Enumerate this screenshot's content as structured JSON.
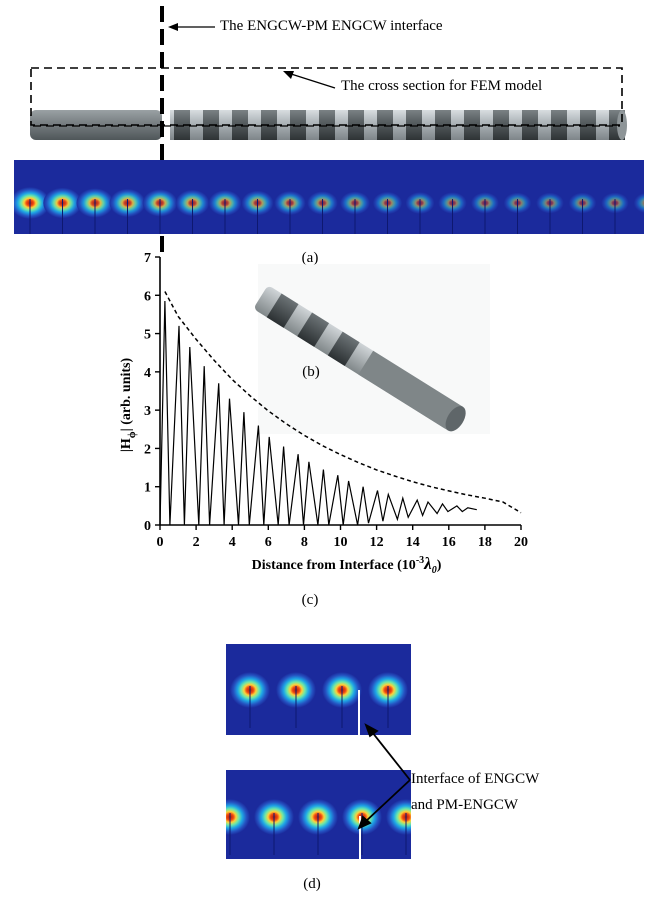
{
  "annotations": {
    "interface_label": "The ENGCW-PM ENGCW interface",
    "cross_section_label": "The cross section for FEM model",
    "interface_note_line1": "Interface of ENGCW",
    "interface_note_line2": "and PM-ENGCW"
  },
  "captions": {
    "a": "(a)",
    "b": "(b)",
    "c": "(c)",
    "d": "(d)"
  },
  "colors": {
    "field_background": "#1b2a9c",
    "field_core": "#d9200f",
    "rod_dark": "#474d4f",
    "rod_light": "#a9b0b4"
  },
  "chart_data": {
    "type": "line",
    "xlabel": "Distance from Interface (10",
    "xlabel_sup": "-3",
    "xlabel_lambda": "λ",
    "xlabel_sub": "0",
    "xlabel_close": ")",
    "ylabel": "|H",
    "ylabel_sub": "ϕ",
    "ylabel_rest": "| (arb. units)",
    "xlim": [
      0,
      20
    ],
    "ylim": [
      0,
      7
    ],
    "x_ticks": [
      "0",
      "2",
      "4",
      "6",
      "8",
      "10",
      "12",
      "14",
      "16",
      "18",
      "20"
    ],
    "y_ticks": [
      "0",
      "1",
      "2",
      "3",
      "4",
      "5",
      "6",
      "7"
    ],
    "series": [
      {
        "style": "solid",
        "x": [
          0.0,
          0.27,
          0.55,
          1.05,
          1.35,
          1.65,
          2.15,
          2.45,
          2.75,
          3.25,
          3.55,
          3.85,
          4.35,
          4.65,
          4.95,
          5.45,
          5.75,
          6.05,
          6.55,
          6.85,
          7.15,
          7.65,
          7.95,
          8.25,
          8.75,
          9.05,
          9.35,
          9.85,
          10.15,
          10.45,
          10.95,
          11.25,
          11.55,
          12.05,
          12.35,
          12.65,
          13.15,
          13.45,
          13.75,
          14.25,
          14.55,
          14.85,
          15.35,
          15.65,
          15.95,
          16.45,
          16.75,
          17.05,
          17.55
        ],
        "y": [
          0.0,
          5.85,
          0.0,
          5.2,
          0.0,
          4.65,
          0.0,
          4.15,
          0.0,
          3.7,
          0.0,
          3.3,
          0.0,
          2.95,
          0.0,
          2.6,
          0.0,
          2.3,
          0.0,
          2.05,
          0.0,
          1.85,
          0.0,
          1.65,
          0.0,
          1.45,
          0.0,
          1.3,
          0.0,
          1.15,
          0.0,
          1.0,
          0.05,
          0.9,
          0.1,
          0.8,
          0.15,
          0.7,
          0.2,
          0.65,
          0.25,
          0.6,
          0.3,
          0.55,
          0.35,
          0.5,
          0.35,
          0.45,
          0.4
        ]
      },
      {
        "style": "dashed",
        "x": [
          0.27,
          1,
          2,
          3,
          4,
          5,
          6,
          7,
          8,
          9,
          10,
          11,
          12,
          13,
          14,
          15,
          16,
          17,
          18,
          19,
          20
        ],
        "y": [
          6.1,
          5.45,
          4.85,
          4.3,
          3.8,
          3.37,
          2.98,
          2.64,
          2.34,
          2.07,
          1.84,
          1.63,
          1.44,
          1.28,
          1.13,
          1.0,
          0.89,
          0.79,
          0.7,
          0.6,
          0.32
        ]
      }
    ]
  }
}
